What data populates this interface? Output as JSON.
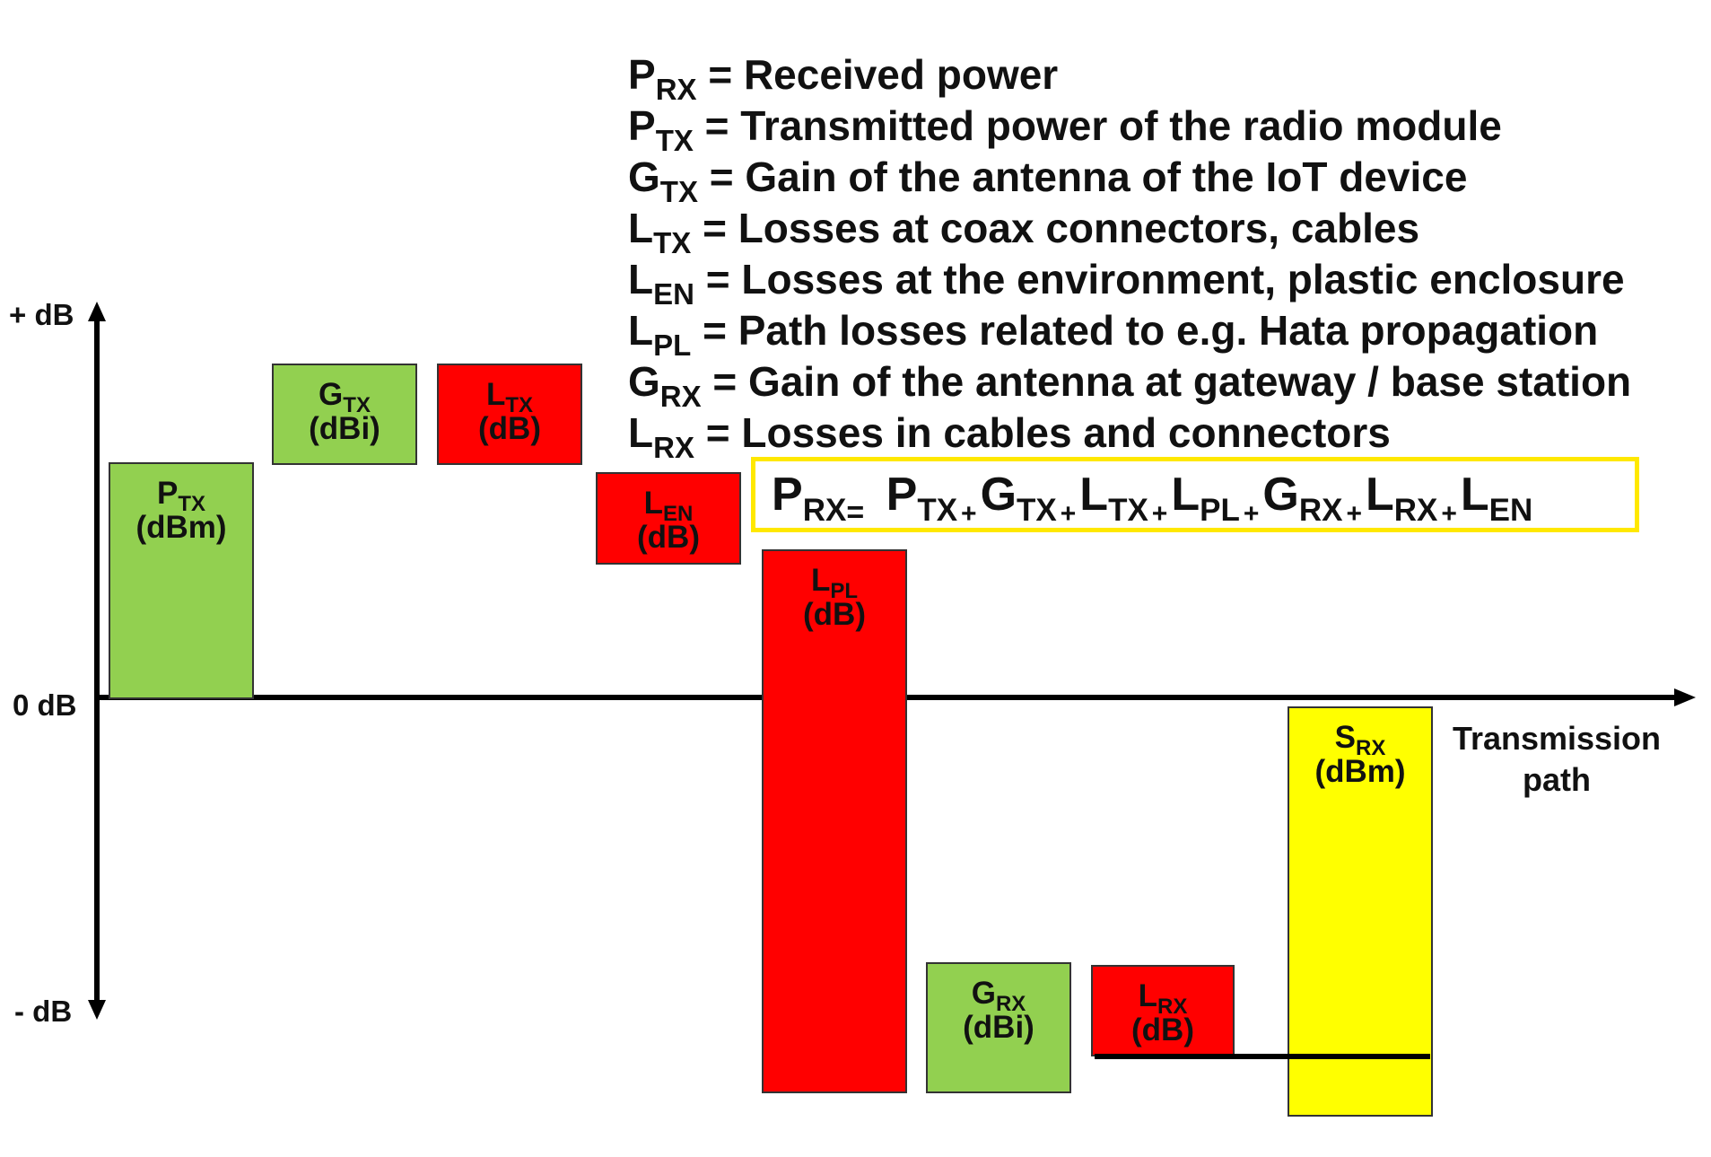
{
  "legend": [
    {
      "symbol": "P",
      "sub": "RX",
      "text": "= Received power"
    },
    {
      "symbol": "P",
      "sub": "TX",
      "text": "= Transmitted power of the radio module"
    },
    {
      "symbol": "G",
      "sub": "TX",
      "text": "= Gain of the antenna of the IoT device"
    },
    {
      "symbol": "L",
      "sub": "TX",
      "text": "= Losses at coax connectors, cables"
    },
    {
      "symbol": "L",
      "sub": "EN",
      "text": "= Losses at the environment, plastic enclosure"
    },
    {
      "symbol": "L",
      "sub": "PL",
      "text": "= Path losses related to e.g. Hata propagation"
    },
    {
      "symbol": "G",
      "sub": "RX",
      "text": "= Gain of the antenna at gateway / base station"
    },
    {
      "symbol": "L",
      "sub": "RX",
      "text": "= Losses in cables and connectors"
    }
  ],
  "formula": {
    "lhs_symbol": "P",
    "lhs_sub": "RX",
    "equals": "=",
    "plus": "+",
    "terms": [
      {
        "symbol": "P",
        "sub": "TX"
      },
      {
        "symbol": "G",
        "sub": "TX"
      },
      {
        "symbol": "L",
        "sub": "TX"
      },
      {
        "symbol": "L",
        "sub": "PL"
      },
      {
        "symbol": "G",
        "sub": "RX"
      },
      {
        "symbol": "L",
        "sub": "RX"
      },
      {
        "symbol": "L",
        "sub": "EN"
      }
    ]
  },
  "axes": {
    "y_top": "+ dB",
    "y_zero": "0 dB",
    "y_bottom": "- dB",
    "x_label_line1": "Transmission",
    "x_label_line2": "path"
  },
  "blocks": [
    {
      "symbol": "P",
      "sub": "TX",
      "unit": "(dBm)",
      "color": "#92d050"
    },
    {
      "symbol": "G",
      "sub": "TX",
      "unit": "(dBi)",
      "color": "#92d050"
    },
    {
      "symbol": "L",
      "sub": "TX",
      "unit": "(dB)",
      "color": "#ff0000"
    },
    {
      "symbol": "L",
      "sub": "EN",
      "unit": "(dB)",
      "color": "#ff0000"
    },
    {
      "symbol": "L",
      "sub": "PL",
      "unit": "(dB)",
      "color": "#ff0000"
    },
    {
      "symbol": "G",
      "sub": "RX",
      "unit": "(dBi)",
      "color": "#92d050"
    },
    {
      "symbol": "L",
      "sub": "RX",
      "unit": "(dB)",
      "color": "#ff0000"
    },
    {
      "symbol": "S",
      "sub": "RX",
      "unit": "(dBm)",
      "color": "#ffff00"
    }
  ]
}
